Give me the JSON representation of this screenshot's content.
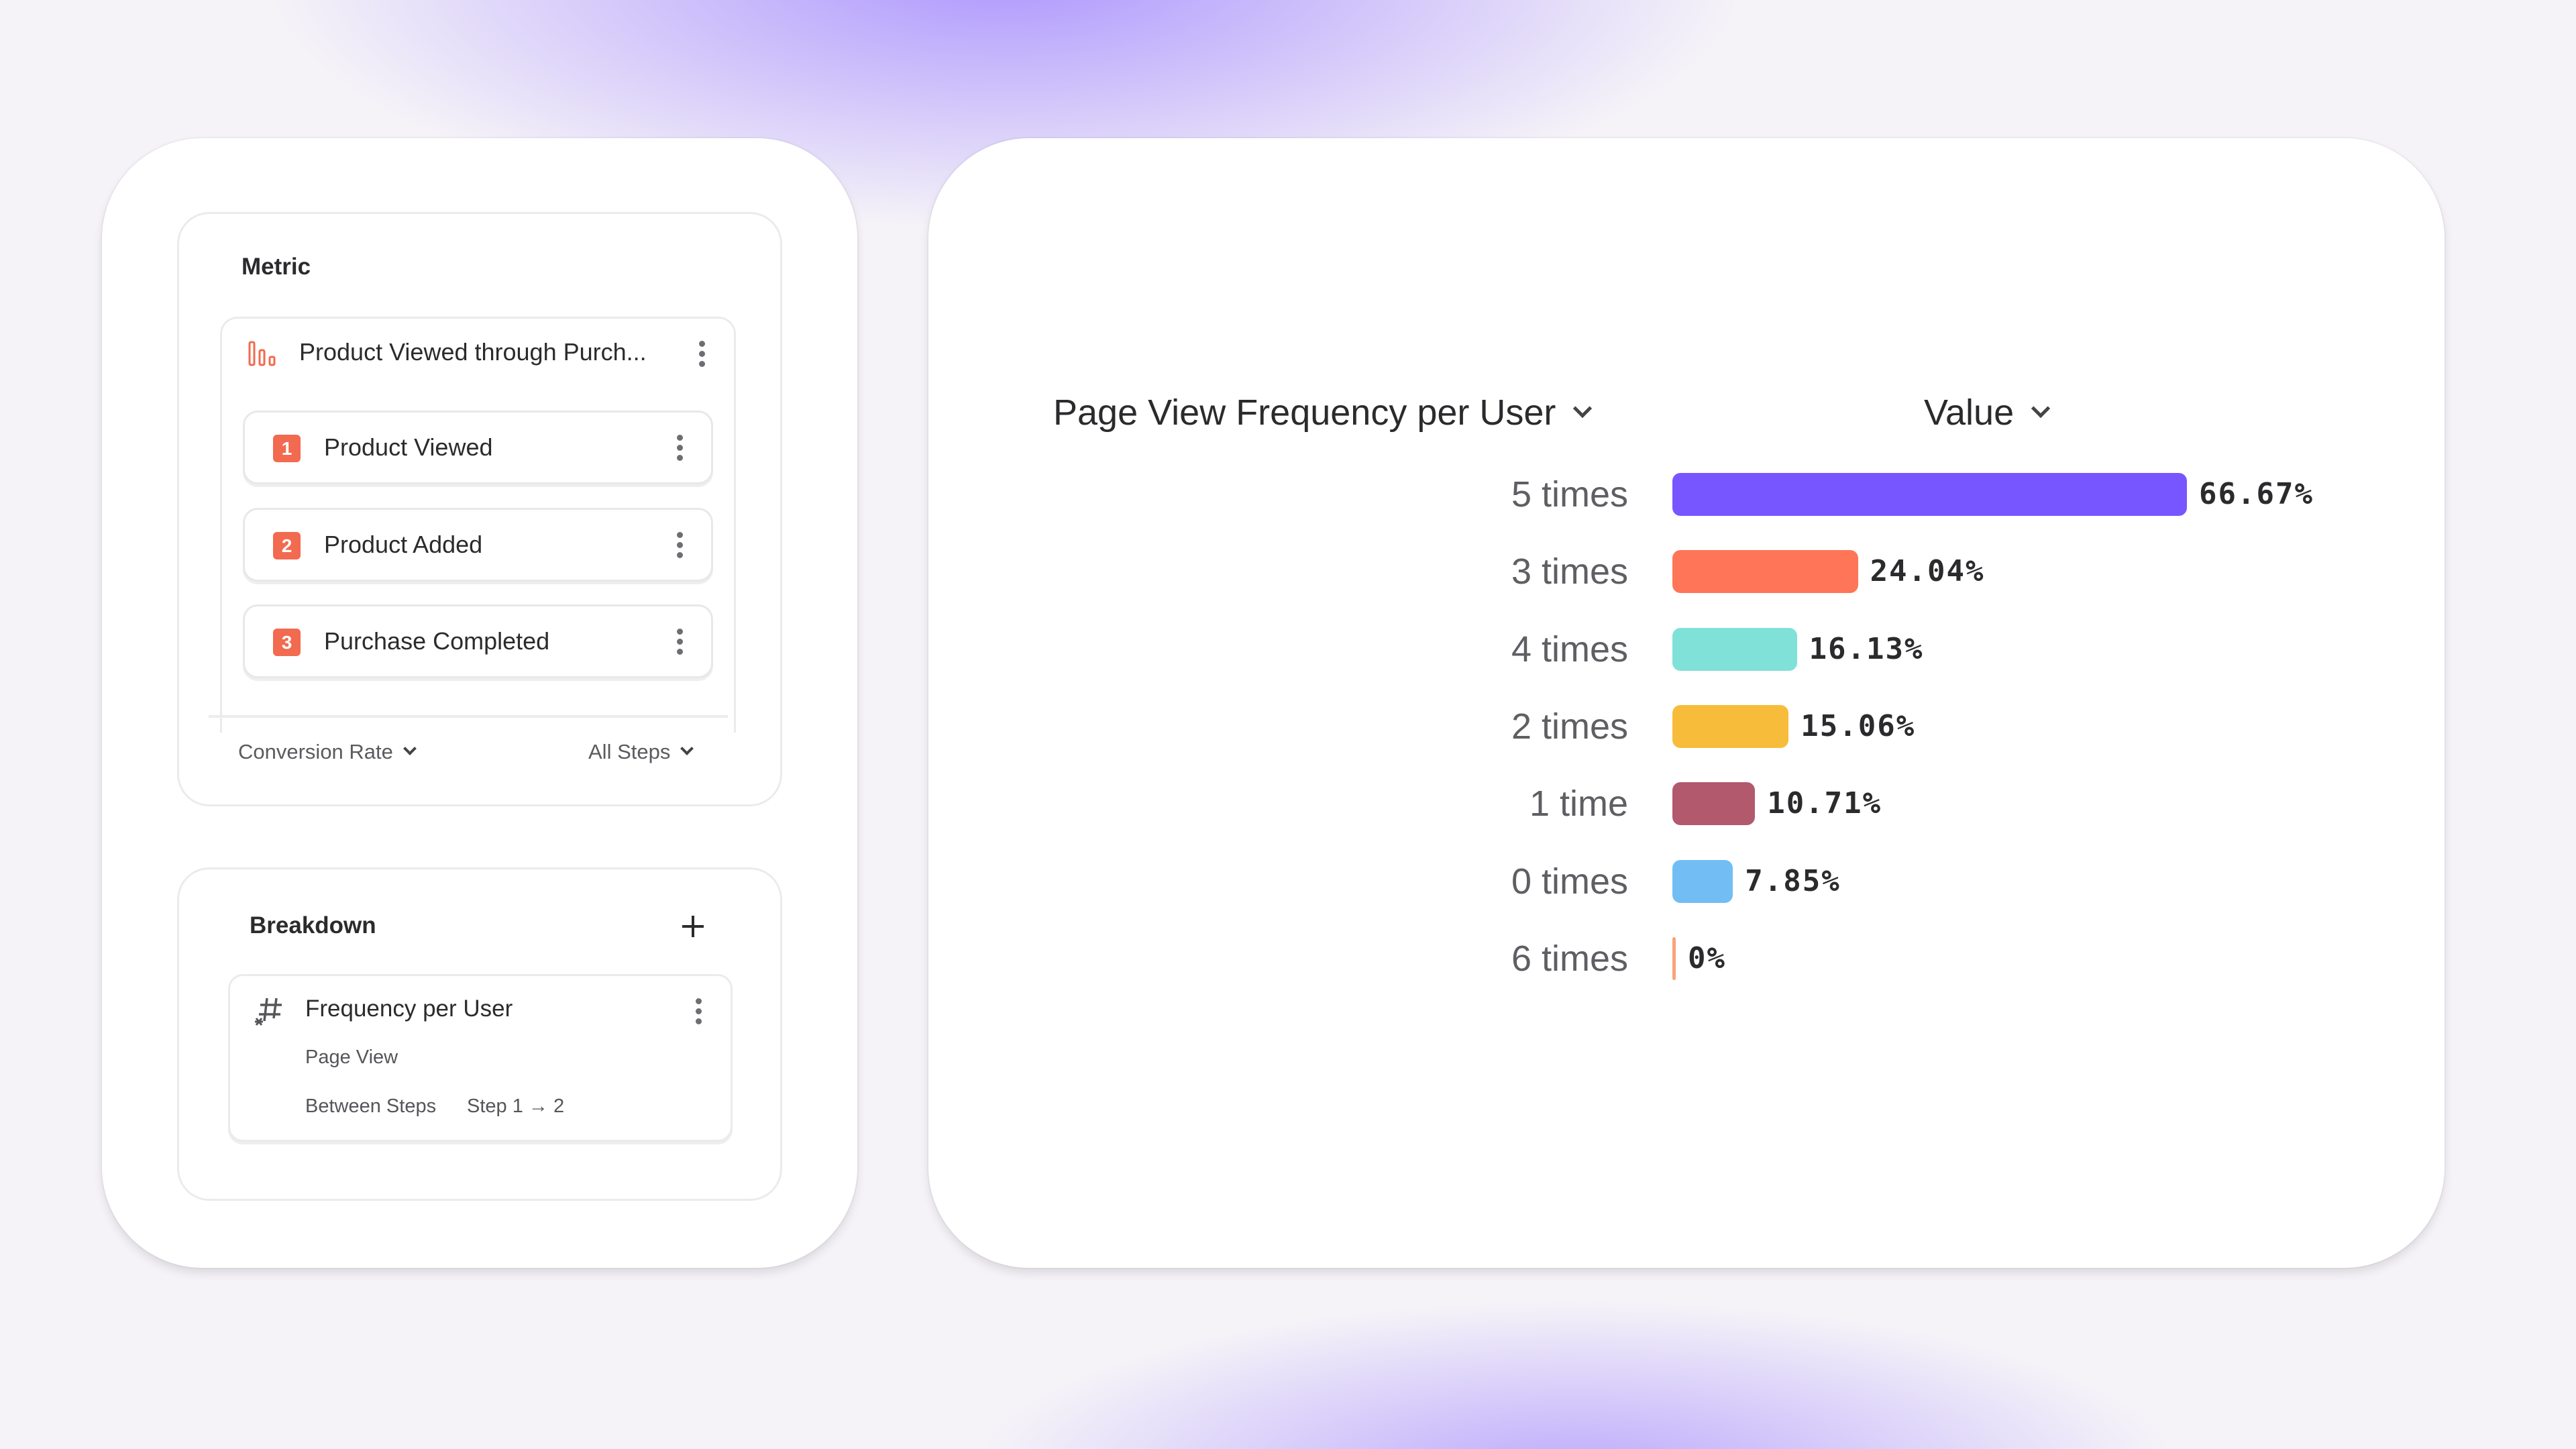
{
  "metric": {
    "title": "Metric",
    "funnel_name": "Product Viewed through Purch...",
    "steps": [
      {
        "number": "1",
        "label": "Product Viewed"
      },
      {
        "number": "2",
        "label": "Product Added"
      },
      {
        "number": "3",
        "label": "Purchase Completed"
      }
    ],
    "measure": "Conversion Rate",
    "steps_filter": "All Steps",
    "accent": "#F26A4F"
  },
  "breakdown": {
    "title": "Breakdown",
    "item": {
      "label": "Frequency per User",
      "event": "Page View",
      "scope_label": "Between Steps",
      "scope_value": "Step 1 → 2"
    }
  },
  "chart_data": {
    "type": "bar",
    "orientation": "horizontal",
    "dimension_header": "Page View Frequency per User",
    "value_header": "Value",
    "categories": [
      "5 times",
      "3 times",
      "4 times",
      "2 times",
      "1 time",
      "0 times",
      "6 times"
    ],
    "values": [
      66.67,
      24.04,
      16.13,
      15.06,
      10.71,
      7.85,
      0
    ],
    "value_labels": [
      "66.67%",
      "24.04%",
      "16.13%",
      "15.06%",
      "10.71%",
      "7.85%",
      "0%"
    ],
    "colors": [
      "#7856FF",
      "#FF7557",
      "#80E1D9",
      "#F8BC3B",
      "#B2596E",
      "#72BEF4",
      "#F9A37B"
    ],
    "unit": "%"
  }
}
